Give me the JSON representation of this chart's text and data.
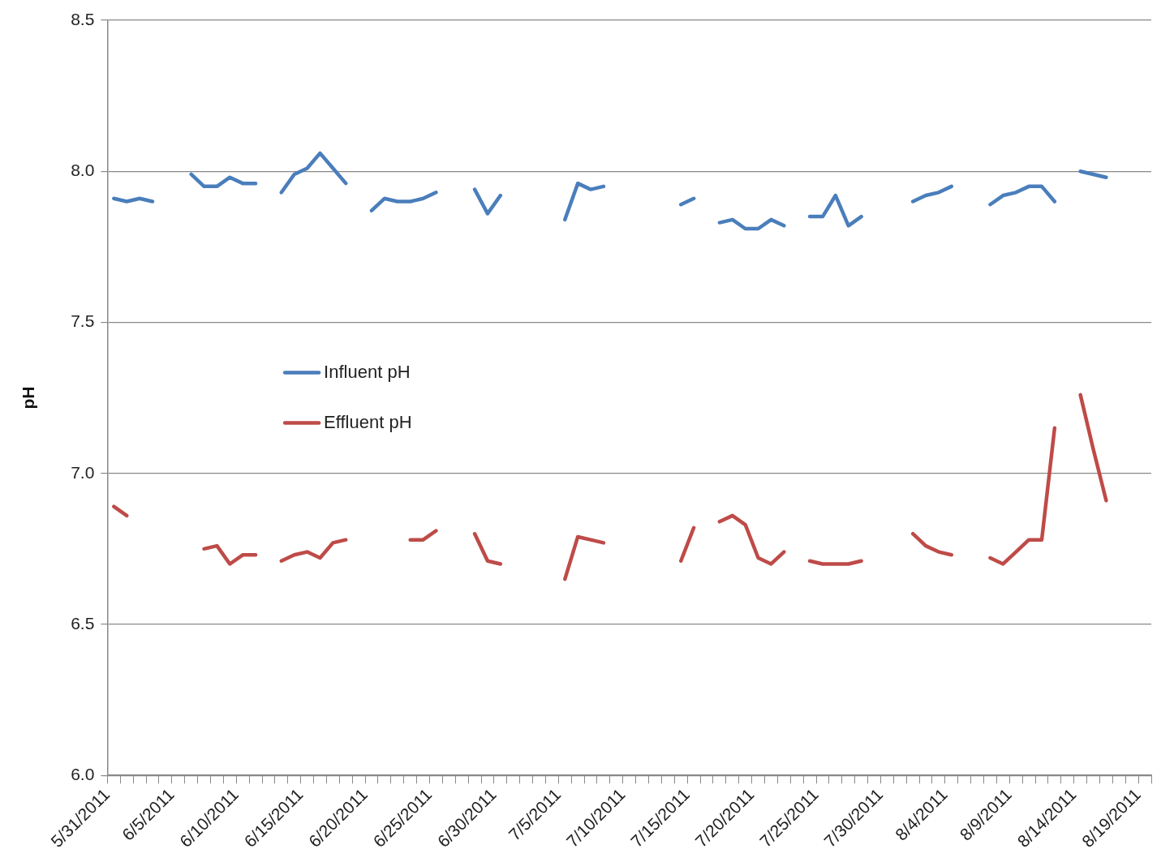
{
  "chart_data": {
    "type": "line",
    "ylabel": "pH",
    "legend": "left",
    "grid": "y",
    "line_style": "solid",
    "x": [
      "2011-05-31T12:00",
      "2011-06-01T12:00",
      "2011-06-02T12:00",
      "2011-06-03T12:00",
      "2011-06-04T12:00",
      "2011-06-05T12:00",
      "2011-06-06T12:00",
      "2011-06-07T12:00",
      "2011-06-08T12:00",
      "2011-06-09T12:00",
      "2011-06-10T12:00",
      "2011-06-11T12:00",
      "2011-06-12T12:00",
      "2011-06-13T12:00",
      "2011-06-14T12:00",
      "2011-06-15T12:00",
      "2011-06-16T12:00",
      "2011-06-17T12:00",
      "2011-06-18T12:00",
      "2011-06-19T12:00",
      "2011-06-20T12:00",
      "2011-06-21T12:00",
      "2011-06-22T12:00",
      "2011-06-23T12:00",
      "2011-06-24T12:00",
      "2011-06-25T12:00",
      "2011-06-26T12:00",
      "2011-06-27T12:00",
      "2011-06-28T12:00",
      "2011-06-29T12:00",
      "2011-06-30T12:00",
      "2011-07-01T12:00",
      "2011-07-02T12:00",
      "2011-07-03T12:00",
      "2011-07-04T12:00",
      "2011-07-05T12:00",
      "2011-07-06T12:00",
      "2011-07-07T12:00",
      "2011-07-08T12:00",
      "2011-07-09T12:00",
      "2011-07-10T12:00",
      "2011-07-11T12:00",
      "2011-07-12T12:00",
      "2011-07-13T12:00",
      "2011-07-14T12:00",
      "2011-07-15T12:00",
      "2011-07-16T12:00",
      "2011-07-17T12:00",
      "2011-07-18T12:00",
      "2011-07-19T12:00",
      "2011-07-20T12:00",
      "2011-07-21T12:00",
      "2011-07-22T12:00",
      "2011-07-23T12:00",
      "2011-07-24T12:00",
      "2011-07-25T12:00",
      "2011-07-26T12:00",
      "2011-07-27T12:00",
      "2011-07-28T12:00",
      "2011-07-29T12:00",
      "2011-07-30T12:00",
      "2011-07-31T12:00",
      "2011-08-01T12:00",
      "2011-08-02T12:00",
      "2011-08-03T12:00",
      "2011-08-04T12:00",
      "2011-08-05T12:00",
      "2011-08-06T12:00",
      "2011-08-07T12:00",
      "2011-08-08T12:00",
      "2011-08-09T12:00",
      "2011-08-10T12:00",
      "2011-08-11T12:00",
      "2011-08-12T12:00",
      "2011-08-13T12:00",
      "2011-08-14T12:00",
      "2011-08-15T12:00",
      "2011-08-16T12:00"
    ],
    "series": [
      {
        "name": "Influent pH",
        "color": "#4a7ebb",
        "values": [
          7.91,
          7.9,
          7.91,
          7.9,
          null,
          null,
          7.99,
          7.95,
          7.95,
          7.98,
          7.96,
          7.96,
          null,
          7.93,
          7.99,
          8.01,
          8.06,
          8.01,
          7.96,
          null,
          7.87,
          7.91,
          7.9,
          7.9,
          7.91,
          7.93,
          null,
          null,
          7.94,
          7.86,
          7.92,
          null,
          null,
          null,
          null,
          7.84,
          7.96,
          7.94,
          7.95,
          null,
          null,
          null,
          null,
          null,
          7.89,
          7.91,
          null,
          7.83,
          7.84,
          7.81,
          7.81,
          7.84,
          7.82,
          null,
          7.85,
          7.85,
          7.92,
          7.82,
          7.85,
          null,
          null,
          null,
          7.9,
          7.92,
          7.93,
          7.95,
          null,
          null,
          7.89,
          7.92,
          7.93,
          7.95,
          7.95,
          7.9,
          null,
          8.0,
          7.99,
          7.98
        ]
      },
      {
        "name": "Effluent pH",
        "color": "#be4b48",
        "values": [
          6.89,
          6.86,
          null,
          null,
          null,
          null,
          null,
          6.75,
          6.76,
          6.7,
          6.73,
          6.73,
          null,
          6.71,
          6.73,
          6.74,
          6.72,
          6.77,
          6.78,
          null,
          null,
          null,
          null,
          6.78,
          6.78,
          6.81,
          null,
          null,
          6.8,
          6.71,
          6.7,
          null,
          null,
          null,
          null,
          6.65,
          6.79,
          6.78,
          6.77,
          null,
          null,
          null,
          null,
          null,
          6.71,
          6.82,
          null,
          6.84,
          6.86,
          6.83,
          6.72,
          6.7,
          6.74,
          null,
          6.71,
          6.7,
          6.7,
          6.7,
          6.71,
          null,
          null,
          null,
          6.8,
          6.76,
          6.74,
          6.73,
          null,
          null,
          6.72,
          6.7,
          6.74,
          6.78,
          6.78,
          7.15,
          null,
          7.26,
          7.08,
          6.91
        ]
      }
    ],
    "ylim": [
      6.0,
      8.5
    ],
    "yticks": [
      {
        "value": 6.0,
        "label": "6.0"
      },
      {
        "value": 6.5,
        "label": "6.5"
      },
      {
        "value": 7.0,
        "label": "7.0"
      },
      {
        "value": 7.5,
        "label": "7.5"
      },
      {
        "value": 8.0,
        "label": "8.0"
      },
      {
        "value": 8.5,
        "label": "8.5"
      }
    ],
    "xlim": [
      "2011-05-31",
      "2011-08-20"
    ],
    "xticks": [
      {
        "value": "2011-05-31",
        "label": "5/31/2011"
      },
      {
        "value": "2011-06-01",
        "label": null
      },
      {
        "value": "2011-06-02",
        "label": null
      },
      {
        "value": "2011-06-03",
        "label": null
      },
      {
        "value": "2011-06-04",
        "label": null
      },
      {
        "value": "2011-06-05",
        "label": "6/5/2011"
      },
      {
        "value": "2011-06-06",
        "label": null
      },
      {
        "value": "2011-06-07",
        "label": null
      },
      {
        "value": "2011-06-08",
        "label": null
      },
      {
        "value": "2011-06-09",
        "label": null
      },
      {
        "value": "2011-06-10",
        "label": "6/10/2011"
      },
      {
        "value": "2011-06-11",
        "label": null
      },
      {
        "value": "2011-06-12",
        "label": null
      },
      {
        "value": "2011-06-13",
        "label": null
      },
      {
        "value": "2011-06-14",
        "label": null
      },
      {
        "value": "2011-06-15",
        "label": "6/15/2011"
      },
      {
        "value": "2011-06-16",
        "label": null
      },
      {
        "value": "2011-06-17",
        "label": null
      },
      {
        "value": "2011-06-18",
        "label": null
      },
      {
        "value": "2011-06-19",
        "label": null
      },
      {
        "value": "2011-06-20",
        "label": "6/20/2011"
      },
      {
        "value": "2011-06-21",
        "label": null
      },
      {
        "value": "2011-06-22",
        "label": null
      },
      {
        "value": "2011-06-23",
        "label": null
      },
      {
        "value": "2011-06-24",
        "label": null
      },
      {
        "value": "2011-06-25",
        "label": "6/25/2011"
      },
      {
        "value": "2011-06-26",
        "label": null
      },
      {
        "value": "2011-06-27",
        "label": null
      },
      {
        "value": "2011-06-28",
        "label": null
      },
      {
        "value": "2011-06-29",
        "label": null
      },
      {
        "value": "2011-06-30",
        "label": "6/30/2011"
      },
      {
        "value": "2011-07-01",
        "label": null
      },
      {
        "value": "2011-07-02",
        "label": null
      },
      {
        "value": "2011-07-03",
        "label": null
      },
      {
        "value": "2011-07-04",
        "label": null
      },
      {
        "value": "2011-07-05",
        "label": "7/5/2011"
      },
      {
        "value": "2011-07-06",
        "label": null
      },
      {
        "value": "2011-07-07",
        "label": null
      },
      {
        "value": "2011-07-08",
        "label": null
      },
      {
        "value": "2011-07-09",
        "label": null
      },
      {
        "value": "2011-07-10",
        "label": "7/10/2011"
      },
      {
        "value": "2011-07-11",
        "label": null
      },
      {
        "value": "2011-07-12",
        "label": null
      },
      {
        "value": "2011-07-13",
        "label": null
      },
      {
        "value": "2011-07-14",
        "label": null
      },
      {
        "value": "2011-07-15",
        "label": "7/15/2011"
      },
      {
        "value": "2011-07-16",
        "label": null
      },
      {
        "value": "2011-07-17",
        "label": null
      },
      {
        "value": "2011-07-18",
        "label": null
      },
      {
        "value": "2011-07-19",
        "label": null
      },
      {
        "value": "2011-07-20",
        "label": "7/20/2011"
      },
      {
        "value": "2011-07-21",
        "label": null
      },
      {
        "value": "2011-07-22",
        "label": null
      },
      {
        "value": "2011-07-23",
        "label": null
      },
      {
        "value": "2011-07-24",
        "label": null
      },
      {
        "value": "2011-07-25",
        "label": "7/25/2011"
      },
      {
        "value": "2011-07-26",
        "label": null
      },
      {
        "value": "2011-07-27",
        "label": null
      },
      {
        "value": "2011-07-28",
        "label": null
      },
      {
        "value": "2011-07-29",
        "label": null
      },
      {
        "value": "2011-07-30",
        "label": "7/30/2011"
      },
      {
        "value": "2011-07-31",
        "label": null
      },
      {
        "value": "2011-08-01",
        "label": null
      },
      {
        "value": "2011-08-02",
        "label": null
      },
      {
        "value": "2011-08-03",
        "label": null
      },
      {
        "value": "2011-08-04",
        "label": "8/4/2011"
      },
      {
        "value": "2011-08-05",
        "label": null
      },
      {
        "value": "2011-08-06",
        "label": null
      },
      {
        "value": "2011-08-07",
        "label": null
      },
      {
        "value": "2011-08-08",
        "label": null
      },
      {
        "value": "2011-08-09",
        "label": "8/9/2011"
      },
      {
        "value": "2011-08-10",
        "label": null
      },
      {
        "value": "2011-08-11",
        "label": null
      },
      {
        "value": "2011-08-12",
        "label": null
      },
      {
        "value": "2011-08-13",
        "label": null
      },
      {
        "value": "2011-08-14",
        "label": "8/14/2011"
      },
      {
        "value": "2011-08-15",
        "label": null
      },
      {
        "value": "2011-08-16",
        "label": null
      },
      {
        "value": "2011-08-17",
        "label": null
      },
      {
        "value": "2011-08-18",
        "label": null
      },
      {
        "value": "2011-08-19",
        "label": "8/19/2011"
      },
      {
        "value": "2011-08-20",
        "label": null
      }
    ]
  }
}
